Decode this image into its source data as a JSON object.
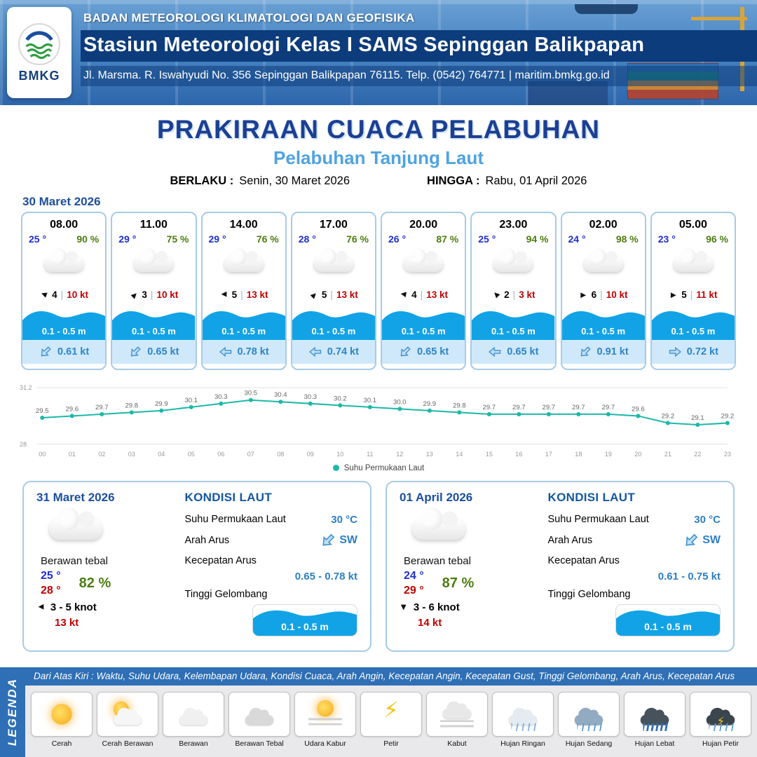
{
  "header": {
    "logo_text": "BMKG",
    "agency": "BADAN METEOROLOGI KLIMATOLOGI DAN GEOFISIKA",
    "station": "Stasiun Meteorologi Kelas I SAMS Sepinggan Balikpapan",
    "address": "Jl. Marsma. R. Iswahyudi No. 356 Sepinggan Balikpapan 76115. Telp. (0542) 764771 | maritim.bmkg.go.id"
  },
  "title": {
    "main": "PRAKIRAAN CUACA PELABUHAN",
    "subtitle": "Pelabuhan Tanjung Laut",
    "valid_from_label": "BERLAKU :",
    "valid_from": "Senin, 30 Maret 2026",
    "valid_to_label": "HINGGA :",
    "valid_to": "Rabu, 01 April 2026"
  },
  "hourly": {
    "date": "30 Maret 2026",
    "cards": [
      {
        "time": "08.00",
        "temp": "25 °",
        "humidity": "90 %",
        "condition_icon": "berawan",
        "wind_deg": 200,
        "wind_val": "4",
        "wind_gust": "10 kt",
        "wave": "0.1 - 0.5 m",
        "current_deg": 135,
        "current": "0.61 kt"
      },
      {
        "time": "11.00",
        "temp": "29 °",
        "humidity": "75 %",
        "condition_icon": "berawan",
        "wind_deg": 315,
        "wind_val": "3",
        "wind_gust": "10 kt",
        "wave": "0.1 - 0.5 m",
        "current_deg": 135,
        "current": "0.65 kt"
      },
      {
        "time": "14.00",
        "temp": "29 °",
        "humidity": "76 %",
        "condition_icon": "berawan",
        "wind_deg": 180,
        "wind_val": "5",
        "wind_gust": "13 kt",
        "wave": "0.1 - 0.5 m",
        "current_deg": 180,
        "current": "0.78 kt"
      },
      {
        "time": "17.00",
        "temp": "28 °",
        "humidity": "76 %",
        "condition_icon": "berawan",
        "wind_deg": 315,
        "wind_val": "5",
        "wind_gust": "13 kt",
        "wave": "0.1 - 0.5 m",
        "current_deg": 180,
        "current": "0.74 kt"
      },
      {
        "time": "20.00",
        "temp": "26 °",
        "humidity": "87 %",
        "condition_icon": "berawan",
        "wind_deg": 190,
        "wind_val": "4",
        "wind_gust": "13 kt",
        "wave": "0.1 - 0.5 m",
        "current_deg": 135,
        "current": "0.65 kt"
      },
      {
        "time": "23.00",
        "temp": "25 °",
        "humidity": "94 %",
        "condition_icon": "berawan",
        "wind_deg": 225,
        "wind_val": "2",
        "wind_gust": "3 kt",
        "wave": "0.1 - 0.5 m",
        "current_deg": 180,
        "current": "0.65 kt"
      },
      {
        "time": "02.00",
        "temp": "24 °",
        "humidity": "98 %",
        "condition_icon": "berawan",
        "wind_deg": 0,
        "wind_val": "6",
        "wind_gust": "10 kt",
        "wave": "0.1 - 0.5 m",
        "current_deg": 135,
        "current": "0.91 kt"
      },
      {
        "time": "05.00",
        "temp": "23 °",
        "humidity": "96 %",
        "condition_icon": "berawan",
        "wind_deg": 0,
        "wind_val": "5",
        "wind_gust": "11 kt",
        "wave": "0.1 - 0.5 m",
        "current_deg": 0,
        "current": "0.72 kt"
      }
    ]
  },
  "chart_data": {
    "type": "line",
    "series_name": "Suhu Permukaan Laut",
    "x": [
      "00",
      "01",
      "02",
      "03",
      "04",
      "05",
      "06",
      "07",
      "08",
      "09",
      "10",
      "11",
      "12",
      "13",
      "14",
      "15",
      "16",
      "17",
      "18",
      "19",
      "20",
      "21",
      "22",
      "23"
    ],
    "values": [
      29.5,
      29.6,
      29.7,
      29.8,
      29.9,
      30.1,
      30.3,
      30.5,
      30.4,
      30.3,
      30.2,
      30.1,
      30.0,
      29.9,
      29.8,
      29.7,
      29.7,
      29.7,
      29.7,
      29.7,
      29.6,
      29.2,
      29.1,
      29.2
    ],
    "ylim": [
      28,
      31.2
    ],
    "line_color": "#1db8a8",
    "legend_position": "bottom",
    "grid": "minimal"
  },
  "daily": [
    {
      "date": "31 Maret 2026",
      "condition": "Berawan tebal",
      "condition_icon": "berawan-tebal",
      "temp_min": "25 °",
      "temp_max": "28 °",
      "humidity": "82 %",
      "wind_deg": 180,
      "wind_range": "3  - 5 knot",
      "wind_gust": "13 kt",
      "sea": {
        "title": "KONDISI LAUT",
        "sst_label": "Suhu Permukaan Laut",
        "sst": "30 °C",
        "current_dir_label": "Arah Arus",
        "current_dir": "SW",
        "current_deg": 135,
        "current_speed_label": "Kecepatan Arus",
        "current_speed": "0.65  - 0.78 kt",
        "wave_label": "Tinggi Gelombang",
        "wave": "0.1 - 0.5 m"
      }
    },
    {
      "date": "01 April 2026",
      "condition": "Berawan tebal",
      "condition_icon": "berawan-tebal",
      "temp_min": "24 °",
      "temp_max": "29 °",
      "humidity": "87 %",
      "wind_deg": 90,
      "wind_range": "3  - 6 knot",
      "wind_gust": "14 kt",
      "sea": {
        "title": "KONDISI LAUT",
        "sst_label": "Suhu Permukaan Laut",
        "sst": "30 °C",
        "current_dir_label": "Arah Arus",
        "current_dir": "SW",
        "current_deg": 135,
        "current_speed_label": "Kecepatan Arus",
        "current_speed": "0.61  - 0.75 kt",
        "wave_label": "Tinggi Gelombang",
        "wave": "0.1 - 0.5 m"
      }
    }
  ],
  "legend": {
    "title": "LEGENDA",
    "description": "Dari Atas Kiri : Waktu, Suhu Udara, Kelembapan Udara, Kondisi Cuaca, Arah Angin, Kecepatan Angin, Kecepatan Gust, Tinggi Gelombang, Arah Arus, Kecepatan Arus",
    "items": [
      {
        "label": "Cerah",
        "icon": "sun"
      },
      {
        "label": "Cerah Berawan",
        "icon": "sun-cloud"
      },
      {
        "label": "Berawan",
        "icon": "cloud"
      },
      {
        "label": "Berawan Tebal",
        "icon": "cloud-thick"
      },
      {
        "label": "Udara Kabur",
        "icon": "haze"
      },
      {
        "label": "Petir",
        "icon": "lightning"
      },
      {
        "label": "Kabut",
        "icon": "fog"
      },
      {
        "label": "Hujan Ringan",
        "icon": "rain-light"
      },
      {
        "label": "Hujan Sedang",
        "icon": "rain-medium"
      },
      {
        "label": "Hujan Lebat",
        "icon": "rain-heavy"
      },
      {
        "label": "Hujan Petir",
        "icon": "rain-thunder"
      }
    ]
  }
}
